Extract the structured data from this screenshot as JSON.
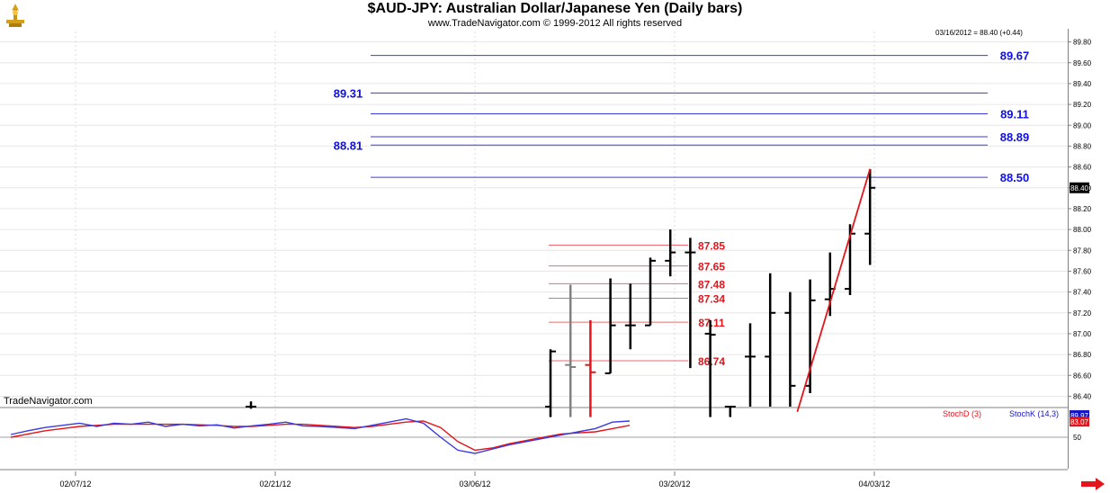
{
  "chart_data": {
    "type": "bar",
    "title": "$AUD-JPY:  Australian Dollar/Japanese Yen  (Daily bars)",
    "subtitle": "www.TradeNavigator.com © 1999-2012 All rights reserved",
    "last_value_label": "03/16/2012 = 88.40 (+0.44)",
    "current_price_label": "88.40",
    "watermark": "TradeNavigator.com",
    "price_axis": {
      "ylim": [
        86.3,
        89.9
      ],
      "ticks": [
        "89.80",
        "89.60",
        "89.40",
        "89.20",
        "89.00",
        "88.80",
        "88.60",
        "88.40",
        "88.20",
        "88.00",
        "87.80",
        "87.60",
        "87.40",
        "87.20",
        "87.00",
        "86.80",
        "86.60",
        "86.40"
      ],
      "tick_values": [
        89.8,
        89.6,
        89.4,
        89.2,
        89.0,
        88.8,
        88.6,
        88.4,
        88.2,
        88.0,
        87.8,
        87.6,
        87.4,
        87.2,
        87.0,
        86.8,
        86.6,
        86.4
      ]
    },
    "x_axis": {
      "ticks": [
        "02/07/12",
        "02/21/12",
        "03/06/12",
        "03/20/12",
        "04/03/12"
      ]
    },
    "ohlc_bars": [
      {
        "x": 1,
        "open": 86.3,
        "high": 86.35,
        "low": 86.28,
        "close": 86.3,
        "color": "black"
      },
      {
        "x": 16,
        "open": 86.3,
        "high": 86.85,
        "low": 86.2,
        "close": 86.83,
        "color": "black"
      },
      {
        "x": 17,
        "open": 86.7,
        "high": 87.47,
        "low": 86.2,
        "close": 86.68,
        "color": "gray"
      },
      {
        "x": 18,
        "open": 86.7,
        "high": 87.13,
        "low": 86.2,
        "close": 86.63,
        "color": "red"
      },
      {
        "x": 19,
        "open": 86.62,
        "high": 87.53,
        "low": 86.62,
        "close": 87.08,
        "color": "black"
      },
      {
        "x": 20,
        "open": 87.08,
        "high": 87.48,
        "low": 86.85,
        "close": 87.08,
        "color": "black"
      },
      {
        "x": 21,
        "open": 87.08,
        "high": 87.73,
        "low": 87.08,
        "close": 87.7,
        "color": "black"
      },
      {
        "x": 22,
        "open": 87.7,
        "high": 88.0,
        "low": 87.55,
        "close": 87.78,
        "color": "black"
      },
      {
        "x": 23,
        "open": 87.78,
        "high": 87.92,
        "low": 86.67,
        "close": 87.78,
        "color": "black"
      },
      {
        "x": 24,
        "open": 87.0,
        "high": 87.13,
        "low": 86.2,
        "close": 86.99,
        "color": "black"
      },
      {
        "x": 25,
        "open": 86.3,
        "high": 86.3,
        "low": 86.2,
        "close": 86.3,
        "color": "black"
      },
      {
        "x": 26,
        "open": 86.78,
        "high": 87.1,
        "low": 86.3,
        "close": 86.78,
        "color": "black"
      },
      {
        "x": 27,
        "open": 86.78,
        "high": 87.58,
        "low": 86.3,
        "close": 87.2,
        "color": "black"
      },
      {
        "x": 28,
        "open": 87.2,
        "high": 87.4,
        "low": 86.3,
        "close": 86.5,
        "color": "black"
      },
      {
        "x": 29,
        "open": 86.5,
        "high": 87.52,
        "low": 86.43,
        "close": 87.32,
        "color": "black"
      },
      {
        "x": 30,
        "open": 87.33,
        "high": 87.78,
        "low": 87.17,
        "close": 87.43,
        "color": "black"
      },
      {
        "x": 31,
        "open": 87.43,
        "high": 88.05,
        "low": 87.37,
        "close": 87.96,
        "color": "black"
      },
      {
        "x": 32,
        "open": 87.96,
        "high": 88.58,
        "low": 87.66,
        "close": 88.4,
        "color": "black"
      }
    ],
    "fib_levels_blue": [
      89.67,
      89.31,
      89.11,
      88.89,
      88.81,
      88.5
    ],
    "fib_levels_red": [
      87.85,
      87.65,
      87.48,
      87.34,
      87.11,
      86.74
    ],
    "trend_line": {
      "from": {
        "x": 28,
        "y": 86.25
      },
      "to": {
        "x": 32,
        "y": 88.58
      }
    },
    "oscillator": {
      "legend": [
        "StochD (3)",
        "StochK (14,3)"
      ],
      "ticks": [
        "50"
      ],
      "tick_values": [
        50
      ],
      "ylim": [
        0,
        100
      ],
      "value_labels": [
        "83.07",
        "89.97"
      ],
      "stoch_d": [
        50,
        56,
        62,
        66,
        70,
        72,
        74,
        74,
        74,
        74,
        74,
        73,
        72,
        70,
        70,
        72,
        74,
        74,
        72,
        70,
        68,
        70,
        74,
        78,
        80,
        68,
        42,
        26,
        30,
        38,
        44,
        50,
        56,
        58,
        60,
        66,
        72
      ],
      "stoch_k": [
        55,
        62,
        68,
        72,
        76,
        70,
        76,
        74,
        78,
        70,
        74,
        71,
        73,
        67,
        71,
        74,
        78,
        71,
        70,
        68,
        66,
        72,
        78,
        84,
        76,
        50,
        26,
        20,
        28,
        36,
        42,
        48,
        54,
        60,
        66,
        78,
        80
      ]
    },
    "colors": {
      "blue_level": "#1010e0",
      "red_level": "#e3141b",
      "bars": "#000000",
      "grid": "#c8c8c8",
      "trend": "#e3141b"
    }
  }
}
